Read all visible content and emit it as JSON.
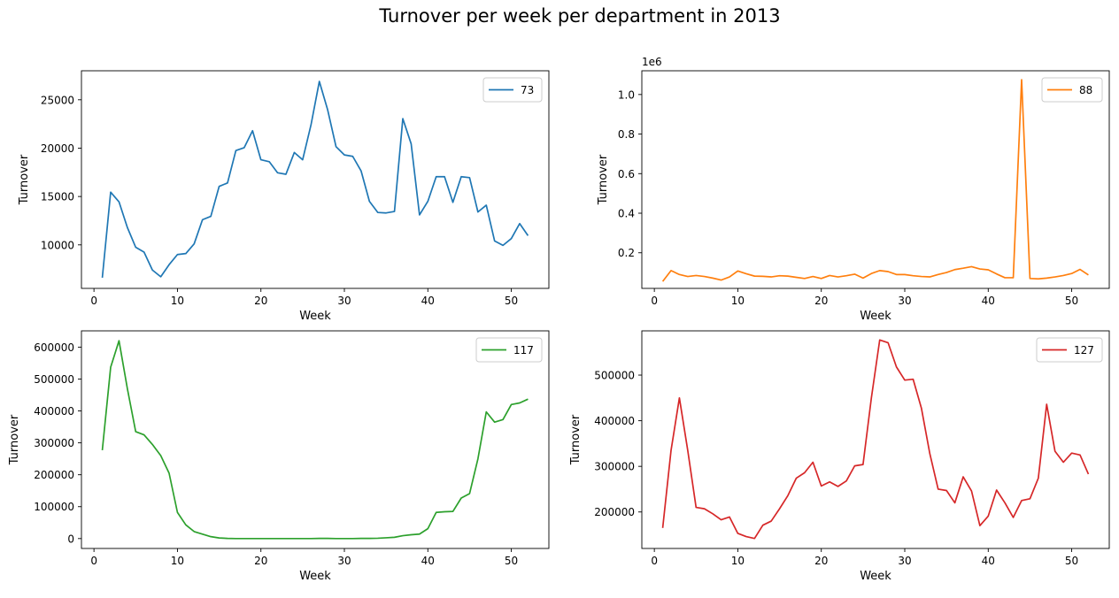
{
  "figure": {
    "title": "Turnover per week per department in 2013"
  },
  "chart_data": [
    {
      "type": "line",
      "title": "",
      "xlabel": "Week",
      "ylabel": "Turnover",
      "offset_label": "",
      "xlim": [
        -1.5,
        54.5
      ],
      "ylim": [
        5500,
        28000
      ],
      "xticks": [
        0,
        10,
        20,
        30,
        40,
        50
      ],
      "xtick_labels": [
        "0",
        "10",
        "20",
        "30",
        "40",
        "50"
      ],
      "yticks": [
        10000,
        15000,
        20000,
        25000
      ],
      "ytick_labels": [
        "10000",
        "15000",
        "20000",
        "25000"
      ],
      "grid": false,
      "legend": "top-right",
      "x": [
        1,
        2,
        3,
        4,
        5,
        6,
        7,
        8,
        9,
        10,
        11,
        12,
        13,
        14,
        15,
        16,
        17,
        18,
        19,
        20,
        21,
        22,
        23,
        24,
        25,
        26,
        27,
        28,
        29,
        30,
        31,
        32,
        33,
        34,
        35,
        36,
        37,
        38,
        39,
        40,
        41,
        42,
        43,
        44,
        45,
        46,
        47,
        48,
        49,
        50,
        51,
        52
      ],
      "series": [
        {
          "name": "73",
          "color": "#1f77b4",
          "values": [
            6600,
            15450,
            14450,
            11800,
            9750,
            9250,
            7400,
            6700,
            7950,
            9000,
            9100,
            10100,
            12600,
            12950,
            16050,
            16400,
            19750,
            20050,
            21800,
            18800,
            18600,
            17450,
            17300,
            19550,
            18800,
            22400,
            26900,
            23950,
            20150,
            19300,
            19150,
            17650,
            14500,
            13350,
            13300,
            13450,
            23050,
            20450,
            13100,
            14500,
            17050,
            17050,
            14400,
            17050,
            16950,
            13400,
            14100,
            10400,
            9950,
            10650,
            12200,
            10950
          ]
        }
      ]
    },
    {
      "type": "line",
      "title": "",
      "xlabel": "Week",
      "ylabel": "Turnover",
      "offset_label": "1e6",
      "xlim": [
        -1.5,
        54.5
      ],
      "ylim": [
        0.02,
        1.12
      ],
      "xticks": [
        0,
        10,
        20,
        30,
        40,
        50
      ],
      "xtick_labels": [
        "0",
        "10",
        "20",
        "30",
        "40",
        "50"
      ],
      "yticks": [
        0.2,
        0.4,
        0.6,
        0.8,
        1.0
      ],
      "ytick_labels": [
        "0.2",
        "0.4",
        "0.6",
        "0.8",
        "1.0"
      ],
      "grid": false,
      "legend": "top-right",
      "x": [
        1,
        2,
        3,
        4,
        5,
        6,
        7,
        8,
        9,
        10,
        11,
        12,
        13,
        14,
        15,
        16,
        17,
        18,
        19,
        20,
        21,
        22,
        23,
        24,
        25,
        26,
        27,
        28,
        29,
        30,
        31,
        32,
        33,
        34,
        35,
        36,
        37,
        38,
        39,
        40,
        41,
        42,
        43,
        44,
        45,
        46,
        47,
        48,
        49,
        50,
        51,
        52
      ],
      "series": [
        {
          "name": "88",
          "color": "#ff7f0e",
          "values": [
            0.055,
            0.11,
            0.09,
            0.08,
            0.085,
            0.08,
            0.072,
            0.062,
            0.078,
            0.108,
            0.094,
            0.082,
            0.081,
            0.078,
            0.084,
            0.082,
            0.076,
            0.07,
            0.08,
            0.07,
            0.085,
            0.078,
            0.084,
            0.092,
            0.072,
            0.095,
            0.11,
            0.105,
            0.09,
            0.09,
            0.084,
            0.08,
            0.078,
            0.09,
            0.1,
            0.115,
            0.122,
            0.13,
            0.118,
            0.114,
            0.093,
            0.074,
            0.074,
            1.075,
            0.07,
            0.068,
            0.072,
            0.078,
            0.085,
            0.095,
            0.116,
            0.088
          ]
        }
      ]
    },
    {
      "type": "line",
      "title": "",
      "xlabel": "Week",
      "ylabel": "Turnover",
      "offset_label": "",
      "xlim": [
        -1.5,
        54.5
      ],
      "ylim": [
        -31000,
        651000
      ],
      "xticks": [
        0,
        10,
        20,
        30,
        40,
        50
      ],
      "xtick_labels": [
        "0",
        "10",
        "20",
        "30",
        "40",
        "50"
      ],
      "yticks": [
        0,
        100000,
        200000,
        300000,
        400000,
        500000,
        600000
      ],
      "ytick_labels": [
        "0",
        "100000",
        "200000",
        "300000",
        "400000",
        "500000",
        "600000"
      ],
      "grid": false,
      "legend": "top-right",
      "x": [
        1,
        2,
        3,
        4,
        5,
        6,
        7,
        8,
        9,
        10,
        11,
        12,
        13,
        14,
        15,
        16,
        17,
        18,
        19,
        20,
        21,
        22,
        23,
        24,
        25,
        26,
        27,
        28,
        29,
        30,
        31,
        32,
        33,
        34,
        35,
        36,
        37,
        38,
        39,
        40,
        41,
        42,
        43,
        44,
        45,
        46,
        47,
        48,
        49,
        50,
        51,
        52
      ],
      "series": [
        {
          "name": "117",
          "color": "#2ca02c",
          "values": [
            277000,
            537000,
            620000,
            470000,
            335000,
            325000,
            295000,
            260000,
            205000,
            82000,
            43000,
            22000,
            14000,
            6000,
            2000,
            500,
            0,
            0,
            0,
            0,
            0,
            0,
            0,
            0,
            0,
            0,
            500,
            500,
            0,
            0,
            0,
            500,
            500,
            1000,
            2500,
            4000,
            9000,
            12000,
            14000,
            31000,
            82000,
            84000,
            85000,
            127000,
            141000,
            250000,
            397000,
            365000,
            373000,
            420000,
            425000,
            437000
          ]
        }
      ]
    },
    {
      "type": "line",
      "title": "",
      "xlabel": "Week",
      "ylabel": "Turnover",
      "offset_label": "",
      "xlim": [
        -1.5,
        54.5
      ],
      "ylim": [
        120000,
        597000
      ],
      "xticks": [
        0,
        10,
        20,
        30,
        40,
        50
      ],
      "xtick_labels": [
        "0",
        "10",
        "20",
        "30",
        "40",
        "50"
      ],
      "yticks": [
        200000,
        300000,
        400000,
        500000
      ],
      "ytick_labels": [
        "200000",
        "300000",
        "400000",
        "500000"
      ],
      "grid": false,
      "legend": "top-right",
      "x": [
        1,
        2,
        3,
        4,
        5,
        6,
        7,
        8,
        9,
        10,
        11,
        12,
        13,
        14,
        15,
        16,
        17,
        18,
        19,
        20,
        21,
        22,
        23,
        24,
        25,
        26,
        27,
        28,
        29,
        30,
        31,
        32,
        33,
        34,
        35,
        36,
        37,
        38,
        39,
        40,
        41,
        42,
        43,
        44,
        45,
        46,
        47,
        48,
        49,
        50,
        51,
        52
      ],
      "series": [
        {
          "name": "127",
          "color": "#d62728",
          "values": [
            165000,
            335000,
            450000,
            335000,
            210000,
            207000,
            196000,
            183000,
            189000,
            153000,
            146000,
            142000,
            171000,
            180000,
            207000,
            236000,
            274000,
            286000,
            309000,
            257000,
            266000,
            256000,
            268000,
            301000,
            304000,
            450000,
            577000,
            571000,
            518000,
            489000,
            491000,
            427000,
            328000,
            250000,
            247000,
            220000,
            277000,
            246000,
            170000,
            191000,
            248000,
            220000,
            188000,
            225000,
            229000,
            274000,
            436000,
            333000,
            309000,
            329000,
            325000,
            283000
          ]
        }
      ]
    }
  ]
}
